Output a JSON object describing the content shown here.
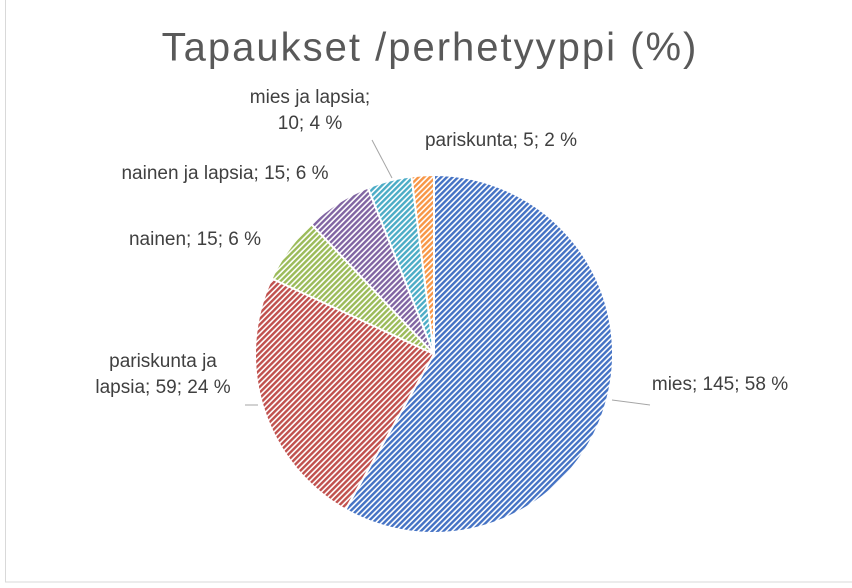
{
  "chart_data": {
    "type": "pie",
    "title": "Tapaukset /perhetyyppi (%)",
    "categories": [
      "mies",
      "pariskunta ja lapsia",
      "nainen",
      "nainen ja lapsia",
      "mies ja lapsia",
      "pariskunta"
    ],
    "values": [
      145,
      59,
      15,
      15,
      10,
      5
    ],
    "percentages": [
      58,
      24,
      6,
      6,
      4,
      2
    ],
    "data_labels": [
      [
        "mies; 145; 58 %"
      ],
      [
        "pariskunta ja",
        "lapsia; 59; 24 %"
      ],
      [
        "nainen; 15; 6 %"
      ],
      [
        "nainen ja lapsia; 15; 6 %"
      ],
      [
        "mies ja lapsia;",
        "10; 4 %"
      ],
      [
        "pariskunta; 5; 2 %"
      ]
    ],
    "colors": [
      "#4472c4",
      "#c0504d",
      "#9bbb59",
      "#8064a2",
      "#4bacc6",
      "#f79646"
    ]
  }
}
